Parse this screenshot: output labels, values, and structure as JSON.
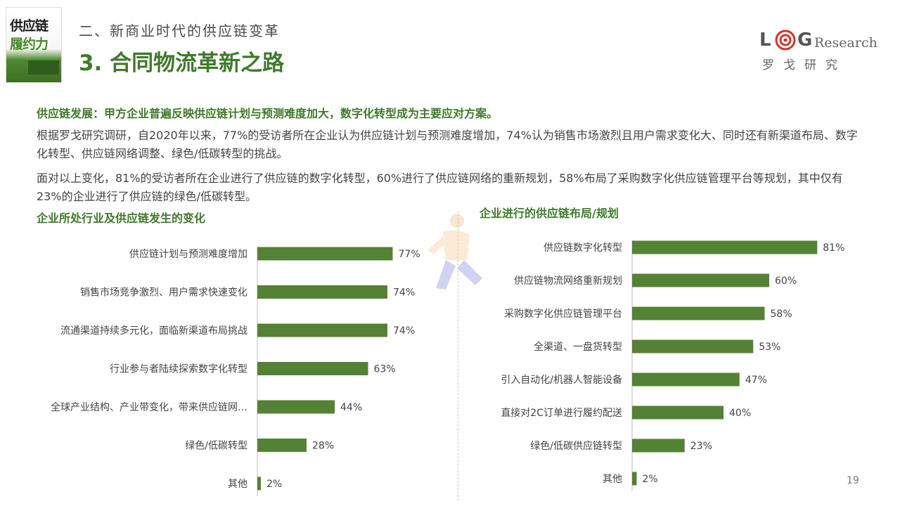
{
  "book": {
    "line1": "供应链",
    "line2": "履约力"
  },
  "section_label": "二、新商业时代的供应链变革",
  "title": "3. 合同物流革新之路",
  "logo": {
    "letter_l": "L",
    "letter_g": "G",
    "research": "Research",
    "chinese": "罗戈研究"
  },
  "headline": "供应链发展：甲方企业普遍反映供应链计划与预测难度加大，数字化转型成为主要应对方案。",
  "paragraph1": "根据罗戈研究调研，自2020年以来，77%的受访者所在企业认为供应链计划与预测难度增加，74%认为销售市场激烈且用户需求变化大、同时还有新渠道布局、数字化转型、供应链网络调整、绿色/低碳转型的挑战。",
  "paragraph2": "面对以上变化，81%的受访者所在企业进行了供应链的数字化转型，60%进行了供应链网络的重新规划，58%布局了采购数字化供应链管理平台等规划，其中仅有23%的企业进行了供应链的绿色/低碳转型。",
  "page_number": "19",
  "colors": {
    "accent": "#3e7a2a",
    "bar": "#548235"
  },
  "chart_data": [
    {
      "type": "bar",
      "orientation": "horizontal",
      "title": "企业所处行业及供应链发生的变化",
      "categories": [
        "供应链计划与预测难度增加",
        "销售市场竞争激烈、用户需求快速变化",
        "流通渠道持续多元化，面临新渠道布局挑战",
        "行业参与者陆续探索数字化转型",
        "全球产业结构、产业带变化，带来供应链网…",
        "绿色/低碳转型",
        "其他"
      ],
      "values": [
        77,
        74,
        74,
        63,
        44,
        28,
        2
      ],
      "value_labels": [
        "77%",
        "74%",
        "74%",
        "63%",
        "44%",
        "28%",
        "2%"
      ],
      "unit": "%",
      "xlim": [
        0,
        100
      ]
    },
    {
      "type": "bar",
      "orientation": "horizontal",
      "title": "企业进行的供应链布局/规划",
      "categories": [
        "供应链数字化转型",
        "供应链物流网络重新规划",
        "采购数字化供应链管理平台",
        "全渠道、一盘货转型",
        "引入自动化/机器人智能设备",
        "直接对2C订单进行履约配送",
        "绿色/低碳供应链转型",
        "其他"
      ],
      "values": [
        81,
        60,
        58,
        53,
        47,
        40,
        23,
        2
      ],
      "value_labels": [
        "81%",
        "60%",
        "58%",
        "53%",
        "47%",
        "40%",
        "23%",
        "2%"
      ],
      "unit": "%",
      "xlim": [
        0,
        100
      ]
    }
  ]
}
